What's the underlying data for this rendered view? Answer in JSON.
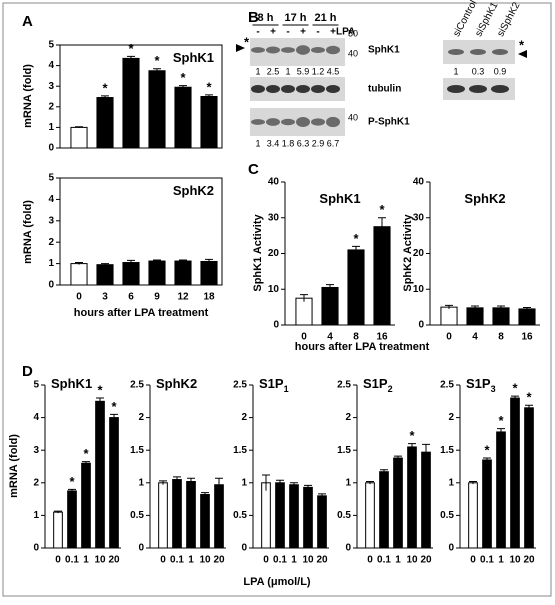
{
  "panel_labels": [
    "A",
    "B",
    "C",
    "D"
  ],
  "chart_data": [
    {
      "type": "bar",
      "title": "SphK1",
      "ylabel": "mRNA (fold)",
      "ylim": [
        0,
        5
      ],
      "yticks": [
        0,
        1,
        2,
        3,
        4,
        5
      ],
      "values": [
        1,
        2.45,
        4.35,
        3.75,
        2.95,
        2.5
      ],
      "errors": [
        0.03,
        0.08,
        0.1,
        0.1,
        0.08,
        0.08
      ],
      "significance": [
        null,
        "*",
        "*",
        "*",
        "*",
        "*"
      ],
      "colors": [
        "#ffffff",
        "#000000",
        "#000000",
        "#000000",
        "#000000",
        "#000000"
      ]
    },
    {
      "type": "bar",
      "title": "SphK2",
      "ylabel": "mRNA (fold)",
      "xlabel": "hours after LPA treatment",
      "ylim": [
        0,
        5
      ],
      "yticks": [
        0,
        1,
        2,
        3,
        4,
        5
      ],
      "categories": [
        "0",
        "3",
        "6",
        "9",
        "12",
        "18"
      ],
      "values": [
        1,
        0.95,
        1.05,
        1.12,
        1.12,
        1.1
      ],
      "errors": [
        0.05,
        0.05,
        0.1,
        0.05,
        0.05,
        0.1
      ],
      "colors": [
        "#ffffff",
        "#000000",
        "#000000",
        "#000000",
        "#000000",
        "#000000"
      ]
    },
    {
      "type": "bar",
      "title": "SphK1",
      "ylabel": "SphK1 Activity",
      "xlabel": "hours after LPA treatment",
      "ylim": [
        0,
        40
      ],
      "yticks": [
        0,
        10,
        20,
        30,
        40
      ],
      "categories": [
        "0",
        "4",
        "8",
        "16"
      ],
      "values": [
        7.5,
        10.5,
        21,
        27.5
      ],
      "errors": [
        1,
        0.8,
        1,
        2.5
      ],
      "significance": [
        null,
        null,
        "*",
        "*"
      ],
      "colors": [
        "#ffffff",
        "#000000",
        "#000000",
        "#000000"
      ]
    },
    {
      "type": "bar",
      "title": "SphK2",
      "ylabel": "SphK2 Activity",
      "ylim": [
        0,
        40
      ],
      "yticks": [
        0,
        10,
        20,
        30,
        40
      ],
      "categories": [
        "0",
        "4",
        "8",
        "16"
      ],
      "values": [
        5,
        4.8,
        4.8,
        4.5
      ],
      "errors": [
        0.5,
        0.5,
        0.5,
        0.4
      ],
      "colors": [
        "#ffffff",
        "#000000",
        "#000000",
        "#000000"
      ]
    },
    {
      "type": "bar",
      "title": "SphK1",
      "ylabel": "mRNA (fold)",
      "ylim": [
        0,
        5
      ],
      "yticks": [
        0,
        1,
        2,
        3,
        4,
        5
      ],
      "categories": [
        "0",
        "0.1",
        "1",
        "10",
        "20"
      ],
      "values": [
        1.1,
        1.75,
        2.6,
        4.5,
        4.0
      ],
      "errors": [
        0.03,
        0.05,
        0.05,
        0.1,
        0.1
      ],
      "significance": [
        null,
        "*",
        "*",
        "*",
        "*"
      ],
      "colors": [
        "#ffffff",
        "#000000",
        "#000000",
        "#000000",
        "#000000"
      ]
    },
    {
      "type": "bar",
      "title": "SphK2",
      "ylim": [
        0,
        2.5
      ],
      "yticks": [
        0,
        0.5,
        1,
        1.5,
        2,
        2.5
      ],
      "categories": [
        "0",
        "0.1",
        "1",
        "10",
        "20"
      ],
      "values": [
        1.0,
        1.05,
        1.02,
        0.82,
        0.97
      ],
      "errors": [
        0.03,
        0.04,
        0.05,
        0.03,
        0.1
      ],
      "colors": [
        "#ffffff",
        "#000000",
        "#000000",
        "#000000",
        "#000000"
      ]
    },
    {
      "type": "bar",
      "title": "S1P",
      "title_sub": "1",
      "ylim": [
        0,
        2.5
      ],
      "yticks": [
        0,
        0.5,
        1,
        1.5,
        2,
        2.5
      ],
      "categories": [
        "0",
        "0.1",
        "1",
        "10",
        "20"
      ],
      "values": [
        1.0,
        1.0,
        0.97,
        0.93,
        0.8
      ],
      "errors": [
        0.12,
        0.04,
        0.03,
        0.03,
        0.03
      ],
      "colors": [
        "#ffffff",
        "#000000",
        "#000000",
        "#000000",
        "#000000"
      ]
    },
    {
      "type": "bar",
      "title": "S1P",
      "title_sub": "2",
      "ylim": [
        0,
        2.5
      ],
      "yticks": [
        0,
        0.5,
        1,
        1.5,
        2,
        2.5
      ],
      "categories": [
        "0",
        "0.1",
        "1",
        "10",
        "20"
      ],
      "values": [
        1.0,
        1.17,
        1.38,
        1.55,
        1.47
      ],
      "errors": [
        0.02,
        0.03,
        0.03,
        0.05,
        0.12
      ],
      "significance": [
        null,
        null,
        null,
        "*",
        null
      ],
      "colors": [
        "#ffffff",
        "#000000",
        "#000000",
        "#000000",
        "#000000"
      ]
    },
    {
      "type": "bar",
      "title": "S1P",
      "title_sub": "3",
      "xlabel": "LPA (μmol/L)",
      "ylim": [
        0,
        2.5
      ],
      "yticks": [
        0,
        0.5,
        1,
        1.5,
        2,
        2.5
      ],
      "categories": [
        "0",
        "0.1",
        "1",
        "10",
        "20"
      ],
      "values": [
        1.0,
        1.35,
        1.78,
        2.3,
        2.15
      ],
      "errors": [
        0.02,
        0.03,
        0.05,
        0.03,
        0.04
      ],
      "significance": [
        null,
        "*",
        "*",
        "*",
        "*"
      ],
      "colors": [
        "#ffffff",
        "#000000",
        "#000000",
        "#000000",
        "#000000"
      ]
    }
  ],
  "blot": {
    "timepoints": [
      "8 h",
      "17 h",
      "21 h"
    ],
    "lpa_signs": [
      "-",
      "+",
      "-",
      "+",
      "-",
      "+"
    ],
    "lpa": "LPA",
    "markers": [
      50,
      40
    ],
    "star": "*",
    "rows": [
      {
        "label": "SphK1",
        "quant": [
          1,
          2.5,
          1,
          5.9,
          1.2,
          4.5
        ]
      },
      {
        "label": "tubulin"
      },
      {
        "label": "P-SphK1",
        "marker": 40,
        "quant": [
          1,
          3.4,
          1.8,
          6.3,
          2.9,
          6.7
        ]
      }
    ],
    "si_lanes": [
      "siControl",
      "siSphK1",
      "siSphK2"
    ],
    "si_quant": [
      1,
      0.3,
      0.9
    ],
    "si_star": "*"
  }
}
